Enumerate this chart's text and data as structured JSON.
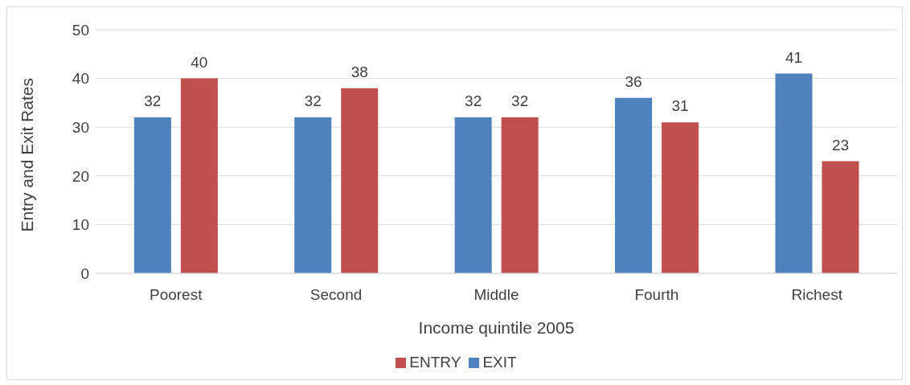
{
  "chart_data": {
    "type": "bar",
    "xlabel": "Income quintile 2005",
    "ylabel": "Entry and Exit Rates",
    "categories": [
      "Poorest",
      "Second",
      "Middle",
      "Fourth",
      "Richest"
    ],
    "series": [
      {
        "name": "EXIT",
        "color": "#4f81bd",
        "values": [
          32,
          32,
          32,
          36,
          41
        ]
      },
      {
        "name": "ENTRY",
        "color": "#c0504d",
        "values": [
          40,
          38,
          32,
          31,
          23
        ]
      }
    ],
    "ylim": [
      0,
      50
    ],
    "yticks": [
      0,
      10,
      20,
      30,
      40,
      50
    ],
    "grid": "y",
    "legend": "bottom",
    "data_labels": true
  }
}
